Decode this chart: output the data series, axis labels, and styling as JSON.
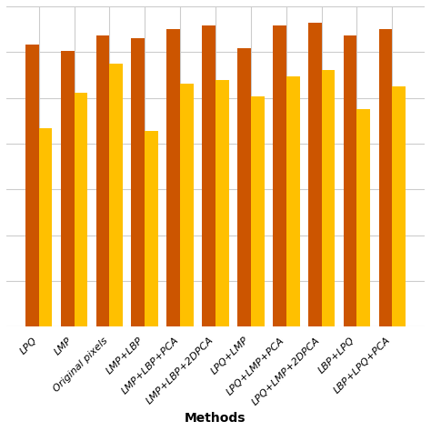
{
  "categories": [
    "LPQ",
    "LMP",
    "Original pixels",
    "LMP+LBP",
    "LMP+LBP+PCA",
    "LMP+LBP+2DPCA",
    "LPQ+LMP",
    "LPQ+LMP+PCA",
    "LPQ+LMP+2DPCA",
    "LBP+LPQ",
    "LBP+LPQ+PCA"
  ],
  "bls_values": [
    88,
    86,
    91,
    90,
    93,
    94,
    87,
    94,
    95,
    91,
    93
  ],
  "svm_values": [
    62,
    73,
    82,
    61,
    76,
    77,
    72,
    78,
    80,
    68,
    75
  ],
  "bls_color": "#CC5500",
  "svm_color": "#FFC000",
  "bar_width": 0.38,
  "ylim": [
    0,
    100
  ],
  "xlabel": "Methods",
  "grid_color": "#CCCCCC",
  "background_color": "#ffffff",
  "tick_fontsize": 8,
  "xlabel_fontsize": 10,
  "n_yticks": 7
}
